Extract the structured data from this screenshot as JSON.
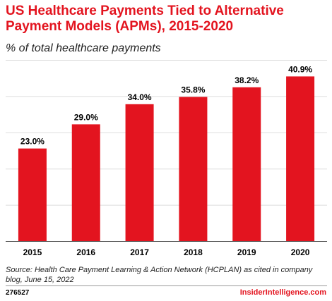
{
  "header": {
    "title": "US Healthcare Payments Tied to Alternative Payment Models (APMs), 2015-2020",
    "subtitle": "% of total healthcare payments"
  },
  "colors": {
    "bar": "#e3141f",
    "title": "#e3141f",
    "brand": "#e3141f",
    "grid": "#dddddd",
    "axis": "#555555"
  },
  "chart_data": {
    "type": "bar",
    "title": "US Healthcare Payments Tied to Alternative Payment Models (APMs), 2015-2020",
    "subtitle": "% of total healthcare payments",
    "categories": [
      "2015",
      "2016",
      "2017",
      "2018",
      "2019",
      "2020"
    ],
    "values": [
      23.0,
      29.0,
      34.0,
      35.8,
      38.2,
      40.9
    ],
    "data_labels": [
      "23.0%",
      "29.0%",
      "34.0%",
      "35.8%",
      "38.2%",
      "40.9%"
    ],
    "xlabel": "",
    "ylabel": "",
    "ylim": [
      0,
      45
    ],
    "grid": true,
    "legend": "none"
  },
  "footer": {
    "source": "Source: Health Care Payment Learning & Action Network (HCPLAN) as cited in company blog, June 15, 2022",
    "chart_id": "276527",
    "brand": "InsiderIntelligence.com"
  }
}
